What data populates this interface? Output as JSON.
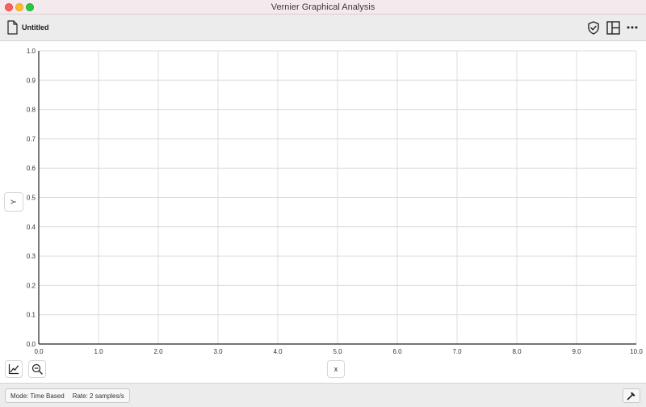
{
  "window": {
    "title": "Vernier Graphical Analysis"
  },
  "toolbar": {
    "file_name": "Untitled",
    "icons": [
      "file-icon",
      "shield-check-icon",
      "layout-icon",
      "more-icon"
    ]
  },
  "graph": {
    "y_axis_button": "Y",
    "x_axis_button": "x",
    "x_ticks": [
      "0.0",
      "1.0",
      "2.0",
      "3.0",
      "4.0",
      "5.0",
      "6.0",
      "7.0",
      "8.0",
      "9.0",
      "10.0"
    ],
    "y_ticks": [
      "0.0",
      "0.1",
      "0.2",
      "0.3",
      "0.4",
      "0.5",
      "0.6",
      "0.7",
      "0.8",
      "0.9",
      "1.0"
    ],
    "xlim": [
      0,
      10
    ],
    "ylim": [
      0,
      1
    ],
    "grid": true,
    "grid_color": "#dcdcdc",
    "axis_color": "#222222",
    "tool_icons": [
      "graph-options-icon",
      "zoom-out-icon"
    ]
  },
  "status": {
    "mode": "Mode: Time Based",
    "rate": "Rate: 2 samples/s",
    "meter_icon": "meter-icon"
  }
}
